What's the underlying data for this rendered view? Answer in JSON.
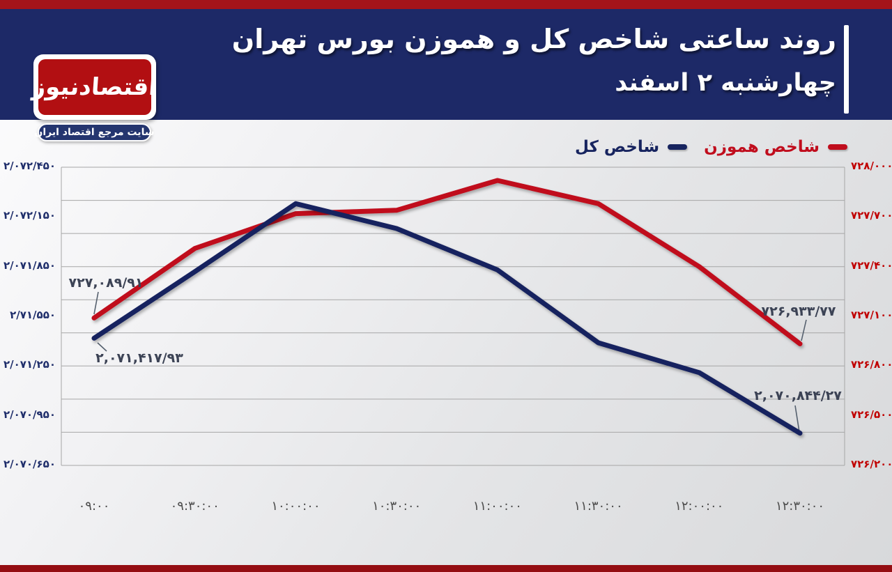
{
  "header": {
    "title_line1": "روند ساعتی شاخص کل و هموزن بورس تهران",
    "title_line2": "چهارشنبه ۲ اسفند",
    "background_color": "#1d2967",
    "top_strip_color": "#a4141a",
    "bottom_strip_color": "#940d12",
    "accent_bar_color": "#ffffff"
  },
  "logo": {
    "name": "اقتصادنیوز",
    "tagline": "سایت مرجع اقتصاد ایران",
    "box_color": "#b20f12",
    "strap_color": "#24356f"
  },
  "legend": {
    "items": [
      {
        "label": "شاخص هموزن",
        "color": "#c00d1d"
      },
      {
        "label": "شاخص کل",
        "color": "#17245f"
      }
    ]
  },
  "chart_data": {
    "type": "line",
    "title": "روند ساعتی شاخص کل و هموزن بورس تهران - چهارشنبه ۲ اسفند",
    "x_categories": [
      "۰۹:۰۰",
      "۰۹:۳۰:۰۰",
      "۱۰:۰۰:۰۰",
      "۱۰:۳۰:۰۰",
      "۱۱:۰۰:۰۰",
      "۱۱:۳۰:۰۰",
      "۱۲:۰۰:۰۰",
      "۱۲:۳۰:۰۰"
    ],
    "x_label_color": "#4d4d4d",
    "series": [
      {
        "name": "شاخص هموزن",
        "axis": "right",
        "color": "#c00d1d",
        "values": [
          727089.91,
          727510,
          727720,
          727740,
          727920,
          727780,
          727400,
          726933.77
        ]
      },
      {
        "name": "شاخص کل",
        "axis": "left",
        "color": "#17245f",
        "values": [
          2071417.93,
          2071820,
          2072230,
          2072080,
          2071830,
          2071390,
          2071210,
          2070844.27
        ]
      }
    ],
    "left_axis": {
      "min": 2070650,
      "max": 2072450,
      "color": "#1f2e6b",
      "tick_labels": [
        "۲/۰۷۲/۴۵۰",
        "۲/۰۷۲/۱۵۰",
        "۲/۰۷۱/۸۵۰",
        "۲/۷۱/۵۵۰",
        "۲/۰۷۱/۲۵۰",
        "۲/۰۷۰/۹۵۰",
        "۲/۰۷۰/۶۵۰"
      ]
    },
    "right_axis": {
      "min": 726200,
      "max": 728000,
      "color": "#c00000",
      "tick_labels": [
        "۷۲۸/۰۰۰",
        "۷۲۷/۷۰۰",
        "۷۲۷/۴۰۰",
        "۷۲۷/۱۰۰",
        "۷۲۶/۸۰۰",
        "۷۲۶/۵۰۰",
        "۷۲۶/۲۰۰"
      ]
    },
    "gridlines": {
      "horizontal_count": 10,
      "color": "#a6a6a6"
    },
    "annotations": [
      {
        "text": "۷۲۷,۰۸۹/۹۱",
        "series": "شاخص هموزن",
        "point_index": 0
      },
      {
        "text": "۲,۰۷۱,۴۱۷/۹۳",
        "series": "شاخص کل",
        "point_index": 0
      },
      {
        "text": "۷۲۶,۹۳۳/۷۷",
        "series": "شاخص هموزن",
        "point_index": 7
      },
      {
        "text": "۲,۰۷۰,۸۴۴/۲۷",
        "series": "شاخص کل",
        "point_index": 7
      }
    ]
  }
}
